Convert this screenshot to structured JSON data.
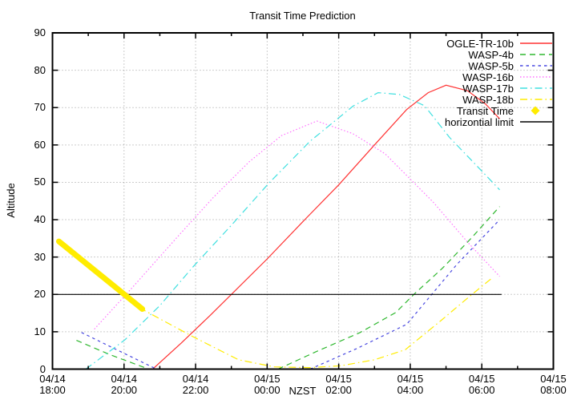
{
  "title": "Transit Time Prediction",
  "axes": {
    "x_label": "NZST",
    "y_label": "Altitude",
    "x_ticks": [
      {
        "date": "04/14",
        "time": "18:00"
      },
      {
        "date": "04/14",
        "time": "20:00"
      },
      {
        "date": "04/14",
        "time": "22:00"
      },
      {
        "date": "04/15",
        "time": "00:00"
      },
      {
        "date": "04/15",
        "time": "02:00"
      },
      {
        "date": "04/15",
        "time": "04:00"
      },
      {
        "date": "04/15",
        "time": "06:00"
      },
      {
        "date": "04/15",
        "time": "08:00"
      }
    ],
    "y_ticks": [
      "0",
      "10",
      "20",
      "30",
      "40",
      "50",
      "60",
      "70",
      "80",
      "90"
    ]
  },
  "legend": [
    {
      "id": "ogle",
      "label": "OGLE-TR-10b"
    },
    {
      "id": "wasp4b",
      "label": "WASP-4b"
    },
    {
      "id": "wasp5b",
      "label": "WASP-5b"
    },
    {
      "id": "wasp16b",
      "label": "WASP-16b"
    },
    {
      "id": "wasp17b",
      "label": "WASP-17b"
    },
    {
      "id": "wasp18b",
      "label": "WASP-18b"
    },
    {
      "id": "transit",
      "label": "Transit Time"
    },
    {
      "id": "limit",
      "label": "horizontial limit"
    }
  ],
  "chart_data": {
    "type": "line",
    "title": "Transit Time Prediction",
    "xlabel": "NZST",
    "ylabel": "Altitude",
    "x_axis": {
      "start": "04/14 18:00",
      "end": "04/15 08:00",
      "tick_interval_hours": 2,
      "minor_tick_hours": 1,
      "units": "hours since 04/14 18:00"
    },
    "y_axis": {
      "min": 0,
      "max": 90,
      "tick_interval": 10
    },
    "grid": "dotted at every major tick",
    "legend_position": "inside top-right",
    "series": [
      {
        "id": "ogle",
        "name": "OGLE-TR-10b",
        "color": "#ff3232",
        "style": "solid",
        "width": 1.2,
        "segments": [
          [
            [
              2.8,
              0
            ],
            [
              3.6,
              7
            ],
            [
              4.4,
              14.3
            ],
            [
              5.0,
              20
            ],
            [
              6.0,
              29.5
            ],
            [
              7.0,
              39.5
            ],
            [
              8.0,
              49.3
            ],
            [
              9.0,
              60
            ],
            [
              9.9,
              69.5
            ],
            [
              10.5,
              74
            ],
            [
              11.0,
              76
            ],
            [
              11.6,
              74.5
            ],
            [
              12.1,
              71
            ],
            [
              12.5,
              67
            ]
          ]
        ]
      },
      {
        "id": "wasp4b",
        "name": "WASP-4b",
        "color": "#30b830",
        "style": "dash",
        "dash": "7 5",
        "width": 1.2,
        "segments": [
          [
            [
              0.67,
              7.7
            ],
            [
              1.6,
              3.9
            ],
            [
              2.69,
              0
            ]
          ],
          [
            [
              6.3,
              0
            ],
            [
              7.4,
              4.8
            ],
            [
              8.6,
              9.8
            ],
            [
              9.6,
              15.2
            ],
            [
              10.1,
              20
            ],
            [
              10.9,
              27
            ],
            [
              11.7,
              35
            ],
            [
              12.5,
              43.5
            ]
          ]
        ]
      },
      {
        "id": "wasp5b",
        "name": "WASP-5b",
        "color": "#4848e0",
        "style": "short-dash",
        "dash": "3.5 4",
        "width": 1.2,
        "segments": [
          [
            [
              0.81,
              9.8
            ],
            [
              1.9,
              4.7
            ],
            [
              2.91,
              0
            ]
          ],
          [
            [
              7.2,
              0
            ],
            [
              8.5,
              5.5
            ],
            [
              9.9,
              12
            ],
            [
              10.6,
              20
            ],
            [
              11.3,
              28
            ],
            [
              12.5,
              40
            ]
          ]
        ]
      },
      {
        "id": "wasp16b",
        "name": "WASP-16b",
        "color": "#ff70ff",
        "style": "dot",
        "dash": "1.5 2.5",
        "width": 1.2,
        "segments": [
          [
            [
              1.17,
              10.7
            ],
            [
              2.2,
              21.5
            ],
            [
              3.54,
              35.9
            ],
            [
              4.5,
              46
            ],
            [
              5.5,
              55.5
            ],
            [
              6.4,
              62.5
            ],
            [
              7.39,
              66.4
            ],
            [
              8.4,
              63
            ],
            [
              9.3,
              57.6
            ],
            [
              10.64,
              44.7
            ],
            [
              11.6,
              34
            ],
            [
              12.5,
              24.8
            ]
          ]
        ]
      },
      {
        "id": "wasp17b",
        "name": "WASP-17b",
        "color": "#40e0e0",
        "style": "dash-dot",
        "dash": "9 4 1.5 4",
        "width": 1.2,
        "segments": [
          [
            [
              0.93,
              0
            ],
            [
              2.02,
              7.8
            ],
            [
              3.0,
              17
            ],
            [
              3.92,
              27.3
            ],
            [
              5.0,
              38.5
            ],
            [
              6.05,
              49.8
            ],
            [
              7.2,
              61
            ],
            [
              8.4,
              70.4
            ],
            [
              9.1,
              74
            ],
            [
              9.7,
              73.5
            ],
            [
              10.4,
              70.5
            ],
            [
              11.1,
              62
            ],
            [
              11.8,
              55
            ],
            [
              12.5,
              48
            ]
          ]
        ]
      },
      {
        "id": "wasp18b",
        "name": "WASP-18b",
        "color": "#ffec00",
        "style": "dash-dot",
        "dash": "9 4 1.5 4",
        "width": 1.2,
        "segments": [
          [
            [
              0.18,
              34.1
            ],
            [
              1.3,
              25.2
            ],
            [
              2.51,
              16
            ],
            [
              3.92,
              8.7
            ],
            [
              5.2,
              2.5
            ],
            [
              6.2,
              0.6
            ],
            [
              7.2,
              0.4
            ],
            [
              8.06,
              0.9
            ],
            [
              9.0,
              2.5
            ],
            [
              9.86,
              5.2
            ],
            [
              10.86,
              13
            ],
            [
              11.6,
              19
            ],
            [
              12.3,
              24.5
            ]
          ]
        ]
      },
      {
        "id": "limit",
        "name": "horizontial limit",
        "color": "#000000",
        "style": "solid",
        "width": 1.2,
        "segments": [
          [
            [
              0.15,
              20
            ],
            [
              12.55,
              20
            ]
          ]
        ]
      },
      {
        "id": "transit",
        "name": "Transit Time",
        "color": "#ffec00",
        "style": "thick-marker",
        "width": 7,
        "segments": [
          [
            [
              0.18,
              34.2
            ],
            [
              1.35,
              25.1
            ],
            [
              2.51,
              16.1
            ]
          ]
        ]
      }
    ]
  }
}
